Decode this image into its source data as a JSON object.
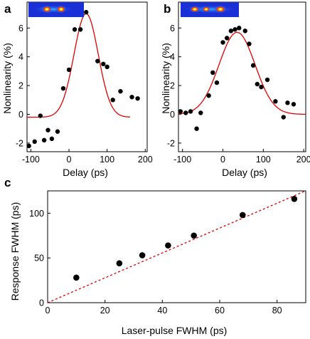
{
  "panels": {
    "a": "a",
    "b": "b",
    "c": "c"
  },
  "colors": {
    "fit_line": "#e00000",
    "data_point": "#000000",
    "inset_bg": "#1b2fd6"
  },
  "chart_data": [
    {
      "type": "scatter",
      "panel": "a",
      "xlabel": "Delay (ps)",
      "ylabel": "Nonlinearity (%)",
      "xlim": [
        -110,
        205
      ],
      "ylim": [
        -2.6,
        7.8
      ],
      "xticks": [
        -100,
        0,
        100,
        200
      ],
      "yticks": [
        -2,
        0,
        2,
        4,
        6
      ],
      "points": [
        {
          "x": -105,
          "y": -2.2
        },
        {
          "x": -90,
          "y": -1.9
        },
        {
          "x": -75,
          "y": -0.1
        },
        {
          "x": -65,
          "y": -1.8
        },
        {
          "x": -55,
          "y": -1.1
        },
        {
          "x": -45,
          "y": -1.7
        },
        {
          "x": -30,
          "y": -1.2
        },
        {
          "x": -15,
          "y": 1.8
        },
        {
          "x": 0,
          "y": 3.1
        },
        {
          "x": 15,
          "y": 5.9
        },
        {
          "x": 30,
          "y": 5.9
        },
        {
          "x": 45,
          "y": 7.1
        },
        {
          "x": 75,
          "y": 3.7
        },
        {
          "x": 90,
          "y": 3.5
        },
        {
          "x": 100,
          "y": 3.3
        },
        {
          "x": 115,
          "y": 1.0
        },
        {
          "x": 135,
          "y": 1.6
        },
        {
          "x": 165,
          "y": 1.2
        },
        {
          "x": 180,
          "y": 1.1
        }
      ],
      "fit": {
        "type": "gaussian",
        "baseline": -0.2,
        "amplitude": 7.2,
        "center": 45,
        "fwhm": 75,
        "x_range": [
          -110,
          160
        ]
      },
      "inset": "spot-pair"
    },
    {
      "type": "scatter",
      "panel": "b",
      "xlabel": "Delay (ps)",
      "ylabel": "Nonlinearity (%)",
      "xlim": [
        -110,
        205
      ],
      "ylim": [
        -2.6,
        7.8
      ],
      "xticks": [
        -100,
        0,
        100,
        200
      ],
      "yticks": [
        -2,
        0,
        2,
        4,
        6
      ],
      "points": [
        {
          "x": -105,
          "y": 0.2
        },
        {
          "x": -92,
          "y": 0.1
        },
        {
          "x": -80,
          "y": 0.2
        },
        {
          "x": -65,
          "y": -1.0
        },
        {
          "x": -55,
          "y": 0.1
        },
        {
          "x": -35,
          "y": 1.3
        },
        {
          "x": -25,
          "y": 2.9
        },
        {
          "x": -15,
          "y": 2.2
        },
        {
          "x": 0,
          "y": 5.0
        },
        {
          "x": 10,
          "y": 5.3
        },
        {
          "x": 20,
          "y": 5.8
        },
        {
          "x": 30,
          "y": 5.9
        },
        {
          "x": 40,
          "y": 6.0
        },
        {
          "x": 55,
          "y": 5.8
        },
        {
          "x": 65,
          "y": 4.9
        },
        {
          "x": 75,
          "y": 3.4
        },
        {
          "x": 85,
          "y": 2.1
        },
        {
          "x": 95,
          "y": 1.9
        },
        {
          "x": 110,
          "y": 2.4
        },
        {
          "x": 130,
          "y": 0.9
        },
        {
          "x": 150,
          "y": -0.2
        },
        {
          "x": 160,
          "y": 0.8
        },
        {
          "x": 175,
          "y": 0.7
        }
      ],
      "fit": {
        "type": "gaussian",
        "baseline": 0.0,
        "amplitude": 5.7,
        "center": 35,
        "fwhm": 105,
        "x_range": [
          -110,
          205
        ]
      },
      "inset": "spot-pair-wide"
    },
    {
      "type": "scatter",
      "panel": "c",
      "xlabel": "Laser-pulse FWHM (ps)",
      "ylabel": "Response FWHM (ps)",
      "xlim": [
        0,
        90
      ],
      "ylim": [
        0,
        125
      ],
      "xticks": [
        0,
        20,
        40,
        60,
        80
      ],
      "yticks": [
        0,
        50,
        100
      ],
      "points": [
        {
          "x": 10,
          "y": 28
        },
        {
          "x": 25,
          "y": 44
        },
        {
          "x": 33,
          "y": 53
        },
        {
          "x": 42,
          "y": 64
        },
        {
          "x": 51,
          "y": 75
        },
        {
          "x": 68,
          "y": 98
        },
        {
          "x": 86,
          "y": 116
        }
      ],
      "reference_line": {
        "style": "dashed",
        "slope": 1.39,
        "intercept": 0
      }
    }
  ]
}
